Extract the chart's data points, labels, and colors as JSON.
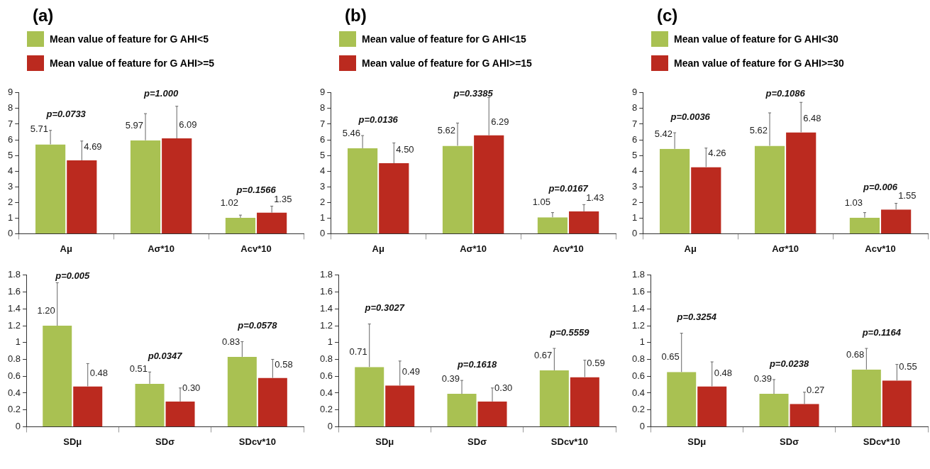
{
  "chart_data": [
    {
      "type": "bar",
      "title": "(a)",
      "categories": [
        "Aμ",
        "Aσ*10",
        "Acv*10"
      ],
      "series": [
        {
          "name": "Mean value of feature for G AHI<5",
          "color": "#a9c152",
          "values": [
            5.71,
            5.97,
            1.02
          ],
          "value_labels": [
            "5.71",
            "5.97",
            "1.02"
          ],
          "errors": [
            [
              5.71,
              6.6
            ],
            [
              5.97,
              7.67
            ],
            [
              1.02,
              1.19
            ]
          ]
        },
        {
          "name": "Mean value of feature for G AHI>=5",
          "color": "#bb2a1f",
          "values": [
            4.69,
            6.09,
            1.35
          ],
          "value_labels": [
            "4.69",
            "6.09",
            "1.35"
          ],
          "errors": [
            [
              4.69,
              5.92
            ],
            [
              6.09,
              8.14
            ],
            [
              1.35,
              1.76
            ]
          ]
        }
      ],
      "ylim": [
        0,
        9
      ],
      "yticks": [
        0,
        1,
        2,
        3,
        4,
        5,
        6,
        7,
        8,
        9
      ],
      "grid": false,
      "legend": "top",
      "annotations": [
        "p=0.0733",
        "p=1.000",
        "p=0.1566"
      ]
    },
    {
      "type": "bar",
      "title": "(b)",
      "categories": [
        "Aμ",
        "Aσ*10",
        "Acv*10"
      ],
      "series": [
        {
          "name": "Mean value of feature for G AHI<15",
          "color": "#a9c152",
          "values": [
            5.46,
            5.62,
            1.05
          ],
          "value_labels": [
            "5.46",
            "5.62",
            "1.05"
          ],
          "errors": [
            [
              5.46,
              6.27
            ],
            [
              5.62,
              7.07
            ],
            [
              1.05,
              1.35
            ]
          ]
        },
        {
          "name": "Mean value of feature for G AHI>=15",
          "color": "#bb2a1f",
          "values": [
            4.5,
            6.29,
            1.43
          ],
          "value_labels": [
            "4.50",
            "6.29",
            "1.43"
          ],
          "errors": [
            [
              4.5,
              5.8
            ],
            [
              6.29,
              8.7
            ],
            [
              1.43,
              1.86
            ]
          ]
        }
      ],
      "ylim": [
        0,
        9
      ],
      "yticks": [
        0,
        1,
        2,
        3,
        4,
        5,
        6,
        7,
        8,
        9
      ],
      "grid": false,
      "legend": "top",
      "annotations": [
        "p=0.0136",
        "p=0.3385",
        "p=0.0167"
      ]
    },
    {
      "type": "bar",
      "title": "(c)",
      "categories": [
        "Aμ",
        "Aσ*10",
        "Acv*10"
      ],
      "series": [
        {
          "name": "Mean value of feature for G AHI<30",
          "color": "#a9c152",
          "values": [
            5.42,
            5.62,
            1.03
          ],
          "value_labels": [
            "5.42",
            "5.62",
            "1.03"
          ],
          "errors": [
            [
              5.42,
              6.45
            ],
            [
              5.62,
              7.72
            ],
            [
              1.03,
              1.35
            ]
          ]
        },
        {
          "name": "Mean value of feature for G AHI>=30",
          "color": "#bb2a1f",
          "values": [
            4.26,
            6.48,
            1.55
          ],
          "value_labels": [
            "4.26",
            "6.48",
            "1.55"
          ],
          "errors": [
            [
              4.26,
              5.47
            ],
            [
              6.48,
              8.39
            ],
            [
              1.55,
              1.94
            ]
          ]
        }
      ],
      "ylim": [
        0,
        9
      ],
      "yticks": [
        0,
        1,
        2,
        3,
        4,
        5,
        6,
        7,
        8,
        9
      ],
      "grid": false,
      "legend": "top",
      "annotations": [
        "p=0.0036",
        "p=0.1086",
        "p=0.006"
      ]
    },
    {
      "type": "bar",
      "categories": [
        "SDμ",
        "SDσ",
        "SDcv*10"
      ],
      "series": [
        {
          "color": "#a9c152",
          "values": [
            1.2,
            0.51,
            0.83
          ],
          "value_labels": [
            "1.20",
            "0.51",
            "0.83"
          ],
          "errors": [
            [
              1.2,
              1.71
            ],
            [
              0.51,
              0.65
            ],
            [
              0.83,
              1.01
            ]
          ]
        },
        {
          "color": "#bb2a1f",
          "values": [
            0.48,
            0.3,
            0.58
          ],
          "value_labels": [
            "0.48",
            "0.30",
            "0.58"
          ],
          "errors": [
            [
              0.48,
              0.75
            ],
            [
              0.3,
              0.46
            ],
            [
              0.58,
              0.8
            ]
          ]
        }
      ],
      "ylim": [
        0,
        1.8
      ],
      "yticks": [
        0,
        0.2,
        0.4,
        0.6,
        0.8,
        1,
        1.2,
        1.4,
        1.6,
        1.8
      ],
      "grid": false,
      "annotations": [
        "p=0.005",
        "p0.0347",
        "p=0.0578"
      ]
    },
    {
      "type": "bar",
      "categories": [
        "SDμ",
        "SDσ",
        "SDcv*10"
      ],
      "series": [
        {
          "color": "#a9c152",
          "values": [
            0.71,
            0.39,
            0.67
          ],
          "value_labels": [
            "0.71",
            "0.39",
            "0.67"
          ],
          "errors": [
            [
              0.71,
              1.22
            ],
            [
              0.39,
              0.55
            ],
            [
              0.67,
              0.93
            ]
          ]
        },
        {
          "color": "#bb2a1f",
          "values": [
            0.49,
            0.3,
            0.59
          ],
          "value_labels": [
            "0.49",
            "0.30",
            "0.59"
          ],
          "errors": [
            [
              0.49,
              0.78
            ],
            [
              0.3,
              0.46
            ],
            [
              0.59,
              0.79
            ]
          ]
        }
      ],
      "ylim": [
        0,
        1.8
      ],
      "yticks": [
        0,
        0.2,
        0.4,
        0.6,
        0.8,
        1,
        1.2,
        1.4,
        1.6,
        1.8
      ],
      "grid": false,
      "annotations": [
        "p=0.3027",
        "p=0.1618",
        "p=0.5559"
      ]
    },
    {
      "type": "bar",
      "categories": [
        "SDμ",
        "SDσ",
        "SDcv*10"
      ],
      "series": [
        {
          "color": "#a9c152",
          "values": [
            0.65,
            0.39,
            0.68
          ],
          "value_labels": [
            "0.65",
            "0.39",
            "0.68"
          ],
          "errors": [
            [
              0.65,
              1.11
            ],
            [
              0.39,
              0.56
            ],
            [
              0.68,
              0.93
            ]
          ]
        },
        {
          "color": "#bb2a1f",
          "values": [
            0.48,
            0.27,
            0.55
          ],
          "value_labels": [
            "0.48",
            "0.27",
            "0.55"
          ],
          "errors": [
            [
              0.48,
              0.77
            ],
            [
              0.27,
              0.41
            ],
            [
              0.55,
              0.74
            ]
          ]
        }
      ],
      "ylim": [
        0,
        1.8
      ],
      "yticks": [
        0,
        0.2,
        0.4,
        0.6,
        0.8,
        1,
        1.2,
        1.4,
        1.6,
        1.8
      ],
      "grid": false,
      "annotations": [
        "p=0.3254",
        "p=0.0238",
        "p=0.1164"
      ]
    }
  ]
}
